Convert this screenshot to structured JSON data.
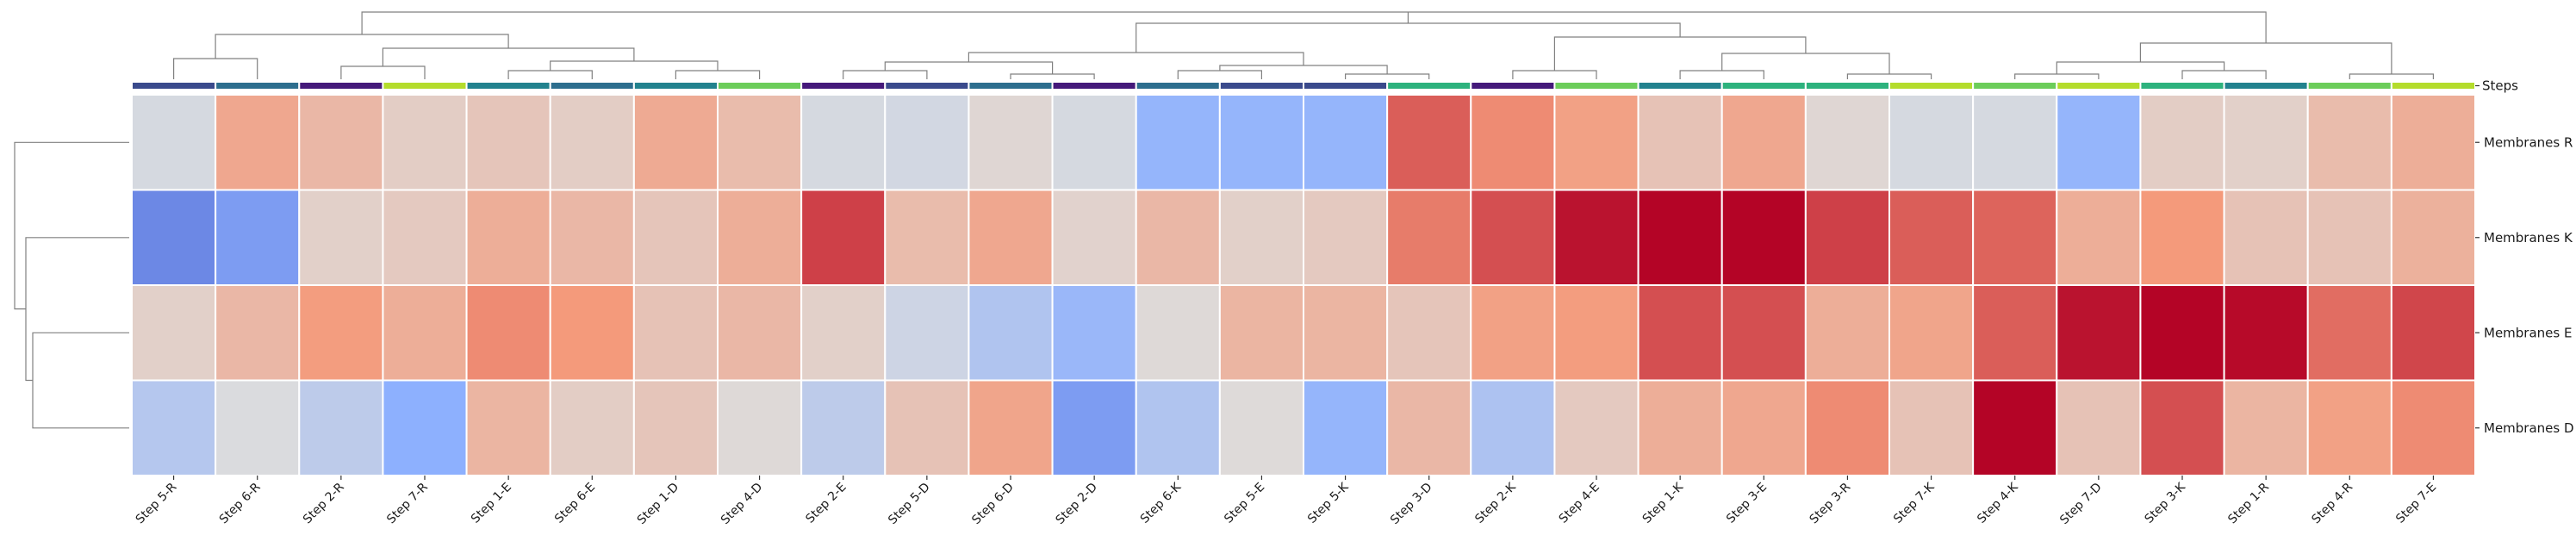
{
  "chart_data": {
    "type": "heatmap",
    "title": "",
    "colormap": "coolwarm",
    "value_range": [
      -1,
      1
    ],
    "row_annotation_label": "Steps",
    "columns": [
      "Step 5-R",
      "Step 6-R",
      "Step 2-R",
      "Step 7-R",
      "Step 1-E",
      "Step 6-E",
      "Step 1-D",
      "Step 4-D",
      "Step 2-E",
      "Step 5-D",
      "Step 6-D",
      "Step 2-D",
      "Step 6-K",
      "Step 5-E",
      "Step 5-K",
      "Step 3-D",
      "Step 2-K",
      "Step 4-E",
      "Step 1-K",
      "Step 3-E",
      "Step 3-R",
      "Step 7-K",
      "Step 4-K",
      "Step 7-D",
      "Step 3-K",
      "Step 1-R",
      "Step 4-R",
      "Step 7-E"
    ],
    "column_groups": [
      5,
      6,
      2,
      7,
      1,
      6,
      1,
      4,
      2,
      5,
      6,
      2,
      6,
      5,
      5,
      3,
      2,
      4,
      1,
      3,
      3,
      7,
      4,
      7,
      3,
      1,
      4,
      7
    ],
    "rows": [
      "Membranes R",
      "Membranes K",
      "Membranes E",
      "Membranes D"
    ],
    "values": [
      [
        -0.05,
        0.4,
        0.28,
        0.12,
        0.18,
        0.12,
        0.38,
        0.25,
        -0.05,
        -0.07,
        0.05,
        -0.05,
        -0.45,
        -0.45,
        -0.45,
        0.7,
        0.55,
        0.45,
        0.2,
        0.4,
        0.05,
        -0.05,
        -0.05,
        -0.45,
        0.12,
        0.1,
        0.25,
        0.35
      ],
      [
        -0.7,
        -0.6,
        0.1,
        0.15,
        0.35,
        0.28,
        0.18,
        0.35,
        0.8,
        0.25,
        0.4,
        0.08,
        0.28,
        0.1,
        0.15,
        0.6,
        0.75,
        0.95,
        1.0,
        1.0,
        0.8,
        0.7,
        0.68,
        0.35,
        0.5,
        0.2,
        0.2,
        0.33
      ],
      [
        0.1,
        0.28,
        0.48,
        0.35,
        0.55,
        0.5,
        0.2,
        0.28,
        0.1,
        -0.1,
        -0.28,
        -0.42,
        0.03,
        0.3,
        0.3,
        0.18,
        0.45,
        0.48,
        0.75,
        0.75,
        0.35,
        0.42,
        0.7,
        0.95,
        1.0,
        0.98,
        0.65,
        0.78
      ],
      [
        -0.25,
        -0.02,
        -0.2,
        -0.5,
        0.3,
        0.12,
        0.18,
        0.03,
        -0.2,
        0.2,
        0.42,
        -0.6,
        -0.28,
        0.02,
        -0.45,
        0.28,
        -0.3,
        0.15,
        0.35,
        0.4,
        0.55,
        0.2,
        1.0,
        0.2,
        0.75,
        0.3,
        0.45,
        0.55
      ]
    ],
    "column_dendrogram": [
      [
        1,
        2
      ],
      [
        3,
        4
      ],
      [
        9,
        10
      ],
      [
        11,
        12
      ],
      [
        13,
        14
      ],
      [
        18,
        19
      ],
      [
        20,
        21
      ],
      [
        22,
        23
      ],
      [
        24,
        25
      ],
      [
        26,
        27
      ],
      [
        6,
        7
      ],
      [
        8,
        -1
      ],
      [
        29,
        -4
      ],
      [
        5,
        -2
      ],
      [
        -11,
        -3
      ],
      [
        -12,
        15
      ],
      [
        -16,
        -7
      ],
      [
        -15,
        -5
      ],
      [
        -14,
        -6
      ],
      [
        -17,
        -8
      ],
      [
        -18,
        -9
      ],
      [
        -10,
        -19
      ],
      [
        -13,
        -20
      ],
      [
        -22,
        -21
      ],
      [
        -24,
        -23
      ],
      [
        -26,
        -25
      ],
      [
        -27,
        -27
      ]
    ],
    "row_dendrogram": [
      [
        2,
        3
      ],
      [
        1,
        -1
      ],
      [
        0,
        -2
      ]
    ],
    "step_colors": {
      "1": "#22828e",
      "2": "#44197a",
      "3": "#2db27d",
      "4": "#6ccd5a",
      "5": "#3a4a8c",
      "6": "#2d6e8e",
      "7": "#b4dc2c"
    },
    "grid_lines": "white",
    "colorbar": "none"
  }
}
